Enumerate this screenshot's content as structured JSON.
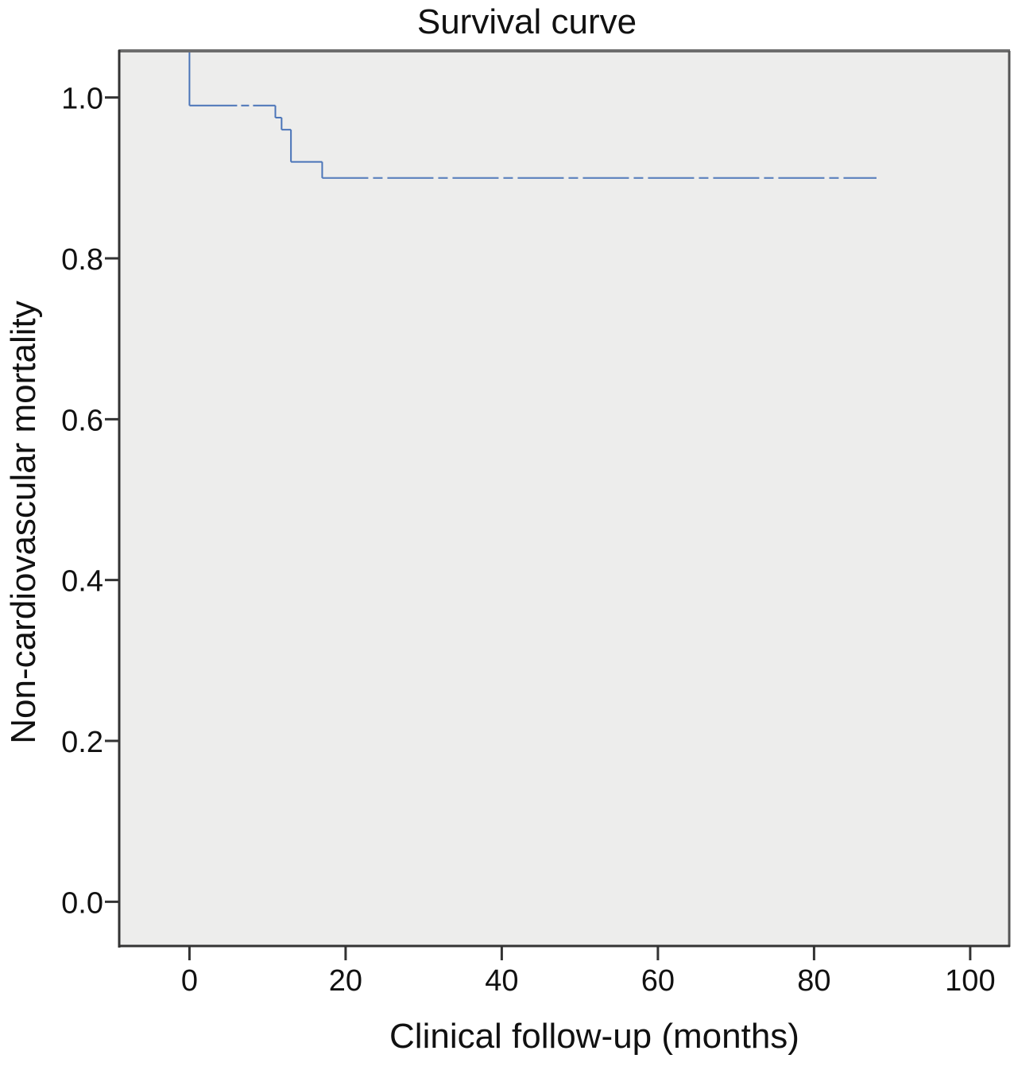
{
  "chart_data": {
    "type": "line",
    "title": "Survival curve",
    "xlabel": "Clinical follow-up (months)",
    "ylabel": "Non-cardiovascular mortality",
    "xlim": [
      -9,
      105
    ],
    "ylim": [
      -0.055,
      1.058
    ],
    "x_ticks": [
      0,
      20,
      40,
      60,
      80,
      100
    ],
    "y_ticks": [
      0.0,
      0.2,
      0.4,
      0.6,
      0.8,
      1.0
    ],
    "x_tick_labels": [
      "0",
      "20",
      "40",
      "60",
      "80",
      "100"
    ],
    "y_tick_labels": [
      "0.0",
      "0.2",
      "0.4",
      "0.6",
      "0.8",
      "1.0"
    ],
    "grid": false,
    "legend": "none",
    "series": [
      {
        "color": "#4a74b8",
        "step": true,
        "censored_tail_dashed": true,
        "points": [
          {
            "x": 0,
            "y": 1.058
          },
          {
            "x": 0,
            "y": 0.99
          },
          {
            "x": 11,
            "y": 0.99
          },
          {
            "x": 11,
            "y": 0.975
          },
          {
            "x": 11.8,
            "y": 0.975
          },
          {
            "x": 11.8,
            "y": 0.96
          },
          {
            "x": 13,
            "y": 0.96
          },
          {
            "x": 13,
            "y": 0.92
          },
          {
            "x": 17,
            "y": 0.92
          },
          {
            "x": 17,
            "y": 0.9
          },
          {
            "x": 88,
            "y": 0.9
          }
        ]
      }
    ]
  },
  "colors": {
    "plot_background": "#ededec",
    "axis": "#333333",
    "frame_top": "#6d6d6d",
    "line": "#4a74b8"
  }
}
